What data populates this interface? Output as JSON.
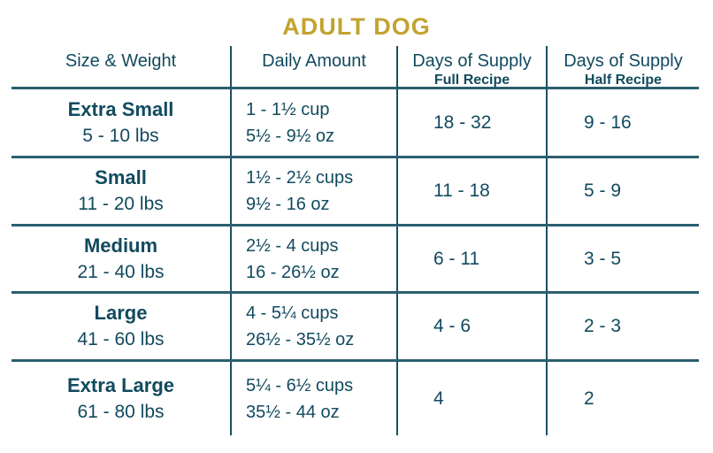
{
  "title": "ADULT DOG",
  "colors": {
    "gold": "#C2A32F",
    "teal": "#114A5E",
    "line_horizontal": "#2B5F70",
    "line_vertical": "#1A5062"
  },
  "chart_data": {
    "type": "table",
    "title": "ADULT DOG",
    "columns": [
      {
        "label": "Size & Weight",
        "sub": ""
      },
      {
        "label": "Daily Amount",
        "sub": ""
      },
      {
        "label": "Days of Supply",
        "sub": "Full Recipe"
      },
      {
        "label": "Days of Supply",
        "sub": "Half Recipe"
      }
    ],
    "rows": [
      {
        "size": "Extra Small",
        "weight": "5 - 10 lbs",
        "amount_cups": "1 - 1½ cup",
        "amount_oz": "5½ - 9½ oz",
        "days_full": "18 - 32",
        "days_half": "9 - 16"
      },
      {
        "size": "Small",
        "weight": "11 - 20 lbs",
        "amount_cups": "1½ - 2½ cups",
        "amount_oz": "9½ - 16 oz",
        "days_full": "11 - 18",
        "days_half": "5 - 9"
      },
      {
        "size": "Medium",
        "weight": "21 - 40 lbs",
        "amount_cups": "2½ - 4 cups",
        "amount_oz": "16 - 26½ oz",
        "days_full": "6 - 11",
        "days_half": "3 - 5"
      },
      {
        "size": "Large",
        "weight": "41 - 60 lbs",
        "amount_cups": "4 - 5¼ cups",
        "amount_oz": "26½ - 35½ oz",
        "days_full": "4 - 6",
        "days_half": "2 - 3"
      },
      {
        "size": "Extra Large",
        "weight": "61 - 80 lbs",
        "amount_cups": "5¼ - 6½ cups",
        "amount_oz": "35½ - 44 oz",
        "days_full": "4",
        "days_half": "2"
      }
    ]
  }
}
